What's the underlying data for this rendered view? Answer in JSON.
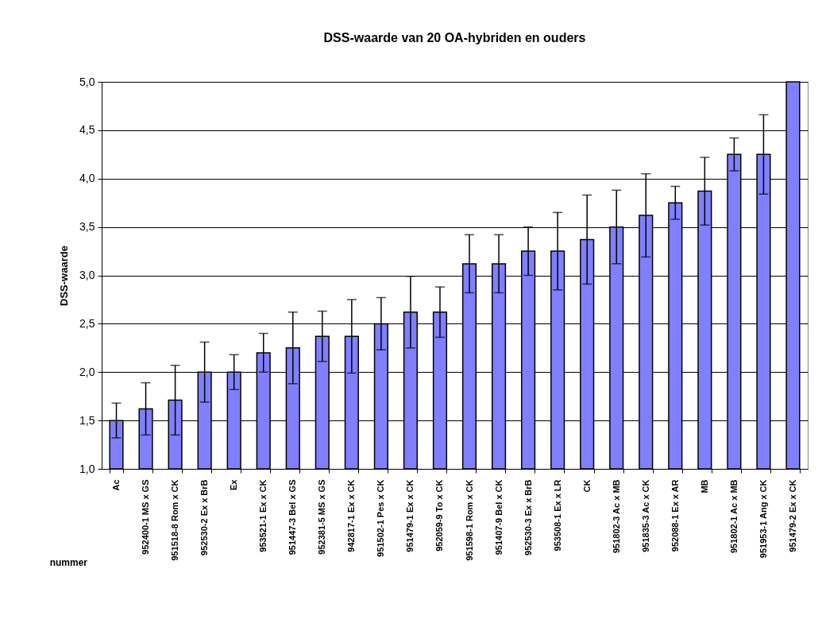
{
  "chart_data": {
    "type": "bar",
    "title": "DSS-waarde van 20 OA-hybriden en ouders",
    "annotations": [
      "nummer"
    ],
    "ylabel": "DSS-waarde",
    "categories": [
      "Ac",
      "952400-1 MS x GS",
      "951518-8 Rom x CK",
      "952530-2 Ex x BrB",
      "Ex",
      "953521-1 Ex x CK",
      "951447-3 Bel x GS",
      "952381-5 MS x GS",
      "942817-1 Ex x CK",
      "951502-1 Pes x CK",
      "951479-1 Ex x CK",
      "952059-9 To x CK",
      "951598-1 Rom x CK",
      "951407-9 Bel x CK",
      "952530-3 Ex x BrB",
      "953508-1 Ex x LR",
      "CK",
      "951802-3 Ac x MB",
      "951835-3 Ac x CK",
      "952088-1 Ex x AR",
      "MB",
      "951802-1 Ac x MB",
      "951953-1 Ang x CK",
      "951479-2 Ex x CK"
    ],
    "series": [
      {
        "color": "#8080ff",
        "values": [
          1.5,
          1.62,
          1.71,
          2.0,
          2.0,
          2.2,
          2.25,
          2.37,
          2.37,
          2.5,
          2.62,
          2.62,
          3.12,
          3.12,
          3.25,
          3.25,
          3.37,
          3.5,
          3.62,
          3.75,
          3.87,
          4.25,
          4.25,
          5.0
        ],
        "errors": [
          0.18,
          0.27,
          0.36,
          0.31,
          0.18,
          0.2,
          0.37,
          0.26,
          0.38,
          0.27,
          0.37,
          0.26,
          0.3,
          0.3,
          0.25,
          0.4,
          0.46,
          0.38,
          0.43,
          0.17,
          0.35,
          0.17,
          0.41,
          null
        ]
      }
    ],
    "ylim": [
      1.0,
      5.0
    ],
    "yticks": [
      {
        "value": 1.0,
        "label": "1,0"
      },
      {
        "value": 1.5,
        "label": "1,5"
      },
      {
        "value": 2.0,
        "label": "2,0"
      },
      {
        "value": 2.5,
        "label": "2,5"
      },
      {
        "value": 3.0,
        "label": "3,0"
      },
      {
        "value": 3.5,
        "label": "3,5"
      },
      {
        "value": 4.0,
        "label": "4,0"
      },
      {
        "value": 4.5,
        "label": "4,5"
      },
      {
        "value": 5.0,
        "label": "5,0"
      }
    ],
    "grid": "y"
  }
}
